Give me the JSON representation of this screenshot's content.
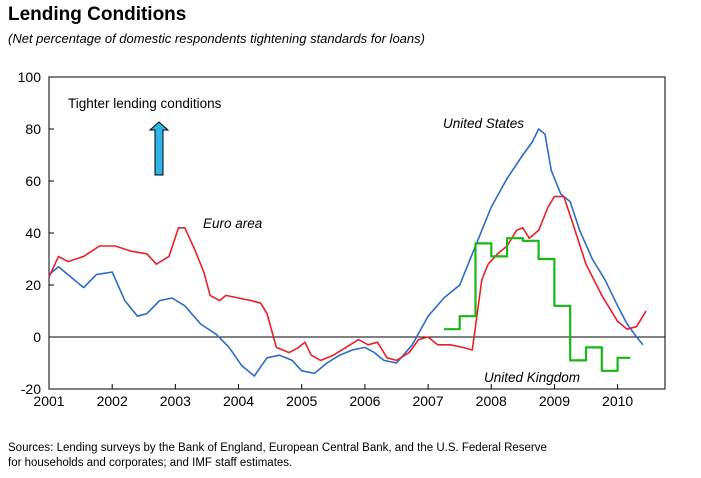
{
  "title": "Lending Conditions",
  "subtitle": "(Net percentage of domestic respondents tightening standards for loans)",
  "source_line1": "Sources: Lending surveys by the Bank of England, European Central Bank, and the U.S. Federal Reserve",
  "source_line2": "for households and corporates; and IMF staff estimates.",
  "colors": {
    "us": "#2e6bc6",
    "euro": "#e8202a",
    "uk": "#15b815",
    "arrow": "#2fb4ea"
  },
  "chart_data": {
    "type": "line",
    "title": "Lending Conditions",
    "subtitle": "(Net percentage of domestic respondents tightening standards for loans)",
    "xlim": [
      2001,
      2010.75
    ],
    "ylim": [
      -20,
      100
    ],
    "yticks": [
      -20,
      0,
      20,
      40,
      60,
      80,
      100
    ],
    "xticks": [
      2001,
      2002,
      2003,
      2004,
      2005,
      2006,
      2007,
      2008,
      2009,
      2010
    ],
    "grid": false,
    "annotations": {
      "arrow_label": "Tighter lending conditions",
      "us_label": "United States",
      "euro_label": "Euro area",
      "uk_label": "United Kingdom"
    },
    "series": [
      {
        "name": "United States",
        "color": "#2e6bc6",
        "step": false,
        "points": [
          [
            2001.0,
            24
          ],
          [
            2001.15,
            27
          ],
          [
            2001.35,
            23
          ],
          [
            2001.55,
            19
          ],
          [
            2001.75,
            24
          ],
          [
            2002.0,
            25
          ],
          [
            2002.2,
            14
          ],
          [
            2002.4,
            8
          ],
          [
            2002.55,
            9
          ],
          [
            2002.75,
            14
          ],
          [
            2002.95,
            15
          ],
          [
            2003.15,
            12
          ],
          [
            2003.4,
            5
          ],
          [
            2003.65,
            1
          ],
          [
            2003.85,
            -4
          ],
          [
            2004.05,
            -11
          ],
          [
            2004.25,
            -15
          ],
          [
            2004.45,
            -8
          ],
          [
            2004.65,
            -7
          ],
          [
            2004.85,
            -9
          ],
          [
            2005.0,
            -13
          ],
          [
            2005.2,
            -14
          ],
          [
            2005.4,
            -10
          ],
          [
            2005.6,
            -7
          ],
          [
            2005.8,
            -5
          ],
          [
            2006.0,
            -4
          ],
          [
            2006.15,
            -6
          ],
          [
            2006.3,
            -9
          ],
          [
            2006.5,
            -10
          ],
          [
            2006.75,
            -3
          ],
          [
            2007.0,
            8
          ],
          [
            2007.25,
            15
          ],
          [
            2007.5,
            20
          ],
          [
            2007.75,
            35
          ],
          [
            2008.0,
            50
          ],
          [
            2008.25,
            61
          ],
          [
            2008.5,
            70
          ],
          [
            2008.65,
            75
          ],
          [
            2008.75,
            80
          ],
          [
            2008.85,
            78
          ],
          [
            2008.95,
            64
          ],
          [
            2009.1,
            55
          ],
          [
            2009.25,
            52
          ],
          [
            2009.4,
            41
          ],
          [
            2009.6,
            30
          ],
          [
            2009.8,
            22
          ],
          [
            2010.0,
            12
          ],
          [
            2010.15,
            5
          ],
          [
            2010.3,
            0
          ],
          [
            2010.4,
            -3
          ]
        ]
      },
      {
        "name": "Euro area",
        "color": "#e8202a",
        "step": false,
        "points": [
          [
            2001.0,
            23
          ],
          [
            2001.15,
            31
          ],
          [
            2001.3,
            29
          ],
          [
            2001.55,
            31
          ],
          [
            2001.8,
            35
          ],
          [
            2002.05,
            35
          ],
          [
            2002.3,
            33
          ],
          [
            2002.55,
            32
          ],
          [
            2002.7,
            28
          ],
          [
            2002.9,
            31
          ],
          [
            2003.05,
            42
          ],
          [
            2003.15,
            42
          ],
          [
            2003.3,
            34
          ],
          [
            2003.45,
            25
          ],
          [
            2003.55,
            16
          ],
          [
            2003.7,
            14
          ],
          [
            2003.8,
            16
          ],
          [
            2004.0,
            15
          ],
          [
            2004.2,
            14
          ],
          [
            2004.35,
            13
          ],
          [
            2004.45,
            9
          ],
          [
            2004.6,
            -4
          ],
          [
            2004.8,
            -6
          ],
          [
            2004.95,
            -4
          ],
          [
            2005.05,
            -2
          ],
          [
            2005.15,
            -7
          ],
          [
            2005.3,
            -9
          ],
          [
            2005.5,
            -7
          ],
          [
            2005.7,
            -4
          ],
          [
            2005.9,
            -1
          ],
          [
            2006.05,
            -3
          ],
          [
            2006.2,
            -2
          ],
          [
            2006.35,
            -8
          ],
          [
            2006.5,
            -9
          ],
          [
            2006.7,
            -6
          ],
          [
            2006.85,
            -1
          ],
          [
            2007.0,
            0
          ],
          [
            2007.15,
            -3
          ],
          [
            2007.35,
            -3
          ],
          [
            2007.55,
            -4
          ],
          [
            2007.7,
            -5
          ],
          [
            2007.85,
            22
          ],
          [
            2007.95,
            28
          ],
          [
            2008.1,
            32
          ],
          [
            2008.25,
            35
          ],
          [
            2008.4,
            41
          ],
          [
            2008.5,
            42
          ],
          [
            2008.6,
            38
          ],
          [
            2008.75,
            41
          ],
          [
            2008.9,
            50
          ],
          [
            2009.0,
            54
          ],
          [
            2009.15,
            54
          ],
          [
            2009.3,
            43
          ],
          [
            2009.5,
            28
          ],
          [
            2009.75,
            16
          ],
          [
            2010.0,
            6
          ],
          [
            2010.15,
            3
          ],
          [
            2010.3,
            4
          ],
          [
            2010.4,
            8
          ],
          [
            2010.45,
            10
          ]
        ]
      },
      {
        "name": "United Kingdom",
        "color": "#15b815",
        "step": true,
        "points": [
          [
            2007.25,
            3
          ],
          [
            2007.5,
            8
          ],
          [
            2007.75,
            36
          ],
          [
            2008.0,
            31
          ],
          [
            2008.25,
            38
          ],
          [
            2008.5,
            37
          ],
          [
            2008.75,
            30
          ],
          [
            2009.0,
            12
          ],
          [
            2009.25,
            -9
          ],
          [
            2009.5,
            -4
          ],
          [
            2009.75,
            -13
          ],
          [
            2010.0,
            -8
          ],
          [
            2010.2,
            -8
          ]
        ]
      }
    ]
  }
}
